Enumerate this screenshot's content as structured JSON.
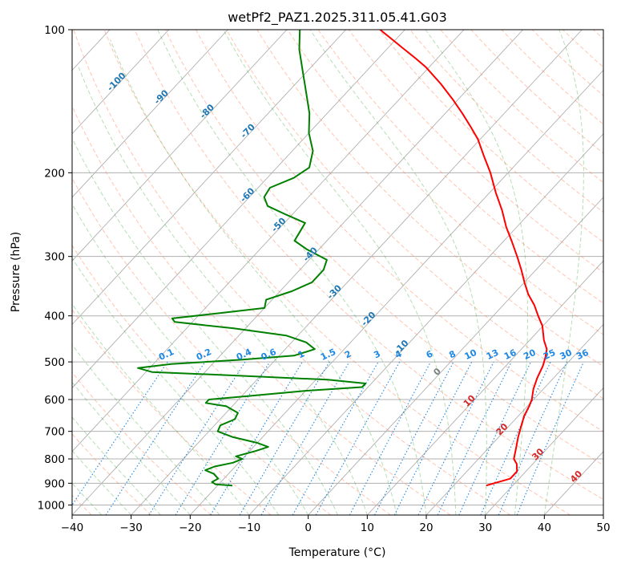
{
  "chart_data": {
    "type": "line",
    "title": "wetPf2_PAZ1.2025.311.05.41.G03",
    "xlabel": "Temperature (°C)",
    "ylabel": "Pressure (hPa)",
    "xlim": [
      -40,
      50
    ],
    "ylim": [
      1050,
      100
    ],
    "y_scale": "log",
    "grid": true,
    "x_ticks": [
      -40,
      -30,
      -20,
      -10,
      0,
      10,
      20,
      30,
      40,
      50
    ],
    "y_ticks": [
      100,
      200,
      300,
      400,
      500,
      600,
      700,
      800,
      900,
      1000
    ],
    "skew_t": true,
    "colors": {
      "temperature": "#ff0000",
      "dewpoint": "#008000",
      "dry_adiabat": "#ff7f50",
      "moist_adiabat": "#2ca02c",
      "mixing_ratio": "#1e88e5",
      "isotherm_label": "#1f77b4",
      "wetbulb_label": "#d62728",
      "freezing_label": "#808080",
      "grid": "#b0b0b0"
    },
    "series": [
      {
        "key": "temperature",
        "points": [
          [
            910,
            25.5
          ],
          [
            900,
            26.5
          ],
          [
            880,
            28.5
          ],
          [
            850,
            28.5
          ],
          [
            820,
            27.3
          ],
          [
            800,
            26.0
          ],
          [
            760,
            24.7
          ],
          [
            720,
            23.3
          ],
          [
            680,
            22.0
          ],
          [
            650,
            21.0
          ],
          [
            620,
            20.3
          ],
          [
            600,
            19.7
          ],
          [
            570,
            18.3
          ],
          [
            540,
            17.2
          ],
          [
            510,
            16.3
          ],
          [
            490,
            15.4
          ],
          [
            470,
            14.3
          ],
          [
            450,
            12.4
          ],
          [
            420,
            9.9
          ],
          [
            400,
            7.6
          ],
          [
            380,
            5.3
          ],
          [
            360,
            2.5
          ],
          [
            340,
            0.0
          ],
          [
            320,
            -2.5
          ],
          [
            300,
            -5.3
          ],
          [
            280,
            -8.4
          ],
          [
            260,
            -11.8
          ],
          [
            240,
            -15.1
          ],
          [
            220,
            -19.0
          ],
          [
            200,
            -23.0
          ],
          [
            185,
            -26.6
          ],
          [
            170,
            -30.4
          ],
          [
            160,
            -33.6
          ],
          [
            150,
            -37.1
          ],
          [
            140,
            -41.0
          ],
          [
            130,
            -45.4
          ],
          [
            120,
            -50.5
          ],
          [
            115,
            -53.6
          ],
          [
            110,
            -57.0
          ],
          [
            105,
            -60.5
          ],
          [
            100,
            -64.2
          ]
        ]
      },
      {
        "key": "dewpoint",
        "points": [
          [
            910,
            -17.5
          ],
          [
            905,
            -20.5
          ],
          [
            895,
            -21.5
          ],
          [
            880,
            -21.0
          ],
          [
            860,
            -22.5
          ],
          [
            845,
            -24.5
          ],
          [
            830,
            -23.5
          ],
          [
            815,
            -21.0
          ],
          [
            800,
            -20.0
          ],
          [
            790,
            -21.5
          ],
          [
            770,
            -19.0
          ],
          [
            755,
            -17.5
          ],
          [
            740,
            -20.0
          ],
          [
            720,
            -25.0
          ],
          [
            700,
            -28.5
          ],
          [
            680,
            -29.0
          ],
          [
            660,
            -27.5
          ],
          [
            640,
            -28.0
          ],
          [
            620,
            -31.0
          ],
          [
            610,
            -35.0
          ],
          [
            600,
            -35.0
          ],
          [
            590,
            -29.0
          ],
          [
            575,
            -20.0
          ],
          [
            565,
            -11.0
          ],
          [
            555,
            -11.0
          ],
          [
            545,
            -18.0
          ],
          [
            535,
            -33.0
          ],
          [
            525,
            -49.0
          ],
          [
            515,
            -52.0
          ],
          [
            505,
            -47.0
          ],
          [
            495,
            -36.0
          ],
          [
            485,
            -27.5
          ],
          [
            470,
            -25.0
          ],
          [
            455,
            -27.5
          ],
          [
            440,
            -32.0
          ],
          [
            425,
            -42.0
          ],
          [
            412,
            -53.0
          ],
          [
            405,
            -54.0
          ],
          [
            395,
            -47.0
          ],
          [
            385,
            -40.0
          ],
          [
            370,
            -41.0
          ],
          [
            355,
            -38.0
          ],
          [
            340,
            -36.0
          ],
          [
            320,
            -36.0
          ],
          [
            305,
            -37.0
          ],
          [
            290,
            -42.0
          ],
          [
            278,
            -45.5
          ],
          [
            266,
            -46.0
          ],
          [
            255,
            -46.5
          ],
          [
            245,
            -51.0
          ],
          [
            235,
            -55.5
          ],
          [
            225,
            -57.5
          ],
          [
            215,
            -58.0
          ],
          [
            205,
            -55.5
          ],
          [
            195,
            -54.5
          ],
          [
            180,
            -56.5
          ],
          [
            165,
            -60.0
          ],
          [
            150,
            -63.0
          ],
          [
            135,
            -67.0
          ],
          [
            120,
            -71.5
          ],
          [
            110,
            -74.8
          ],
          [
            100,
            -77.8
          ]
        ]
      }
    ],
    "mixing_ratio_labels": [
      "0.1",
      "0.2",
      "0.4",
      "0.6",
      "1",
      "1.5",
      "2",
      "3",
      "4",
      "6",
      "8",
      "10",
      "13",
      "16",
      "20",
      "25",
      "30",
      "36"
    ],
    "mixing_ratio_values": [
      0.1,
      0.2,
      0.4,
      0.6,
      1,
      1.5,
      2,
      3,
      4,
      6,
      8,
      10,
      13,
      16,
      20,
      25,
      30,
      36
    ],
    "isotherm_labels": [
      {
        "text": "-100",
        "value": -100,
        "p": 130
      },
      {
        "text": "-90",
        "value": -90,
        "p": 140
      },
      {
        "text": "-80",
        "value": -80,
        "p": 150
      },
      {
        "text": "-70",
        "value": -70,
        "p": 165
      },
      {
        "text": "-60",
        "value": -60,
        "p": 225
      },
      {
        "text": "-50",
        "value": -50,
        "p": 260
      },
      {
        "text": "-40",
        "value": -40,
        "p": 300
      },
      {
        "text": "-30",
        "value": -30,
        "p": 360
      },
      {
        "text": "-20",
        "value": -20,
        "p": 410
      },
      {
        "text": "-10",
        "value": -10,
        "p": 470
      }
    ],
    "freezing_label": {
      "text": "0",
      "value": 0,
      "p": 530
    },
    "wetbulb_labels": [
      {
        "text": "10",
        "value": 10,
        "p": 610
      },
      {
        "text": "20",
        "value": 20,
        "p": 700
      },
      {
        "text": "30",
        "value": 30,
        "p": 790
      },
      {
        "text": "40",
        "value": 40,
        "p": 880
      }
    ]
  }
}
